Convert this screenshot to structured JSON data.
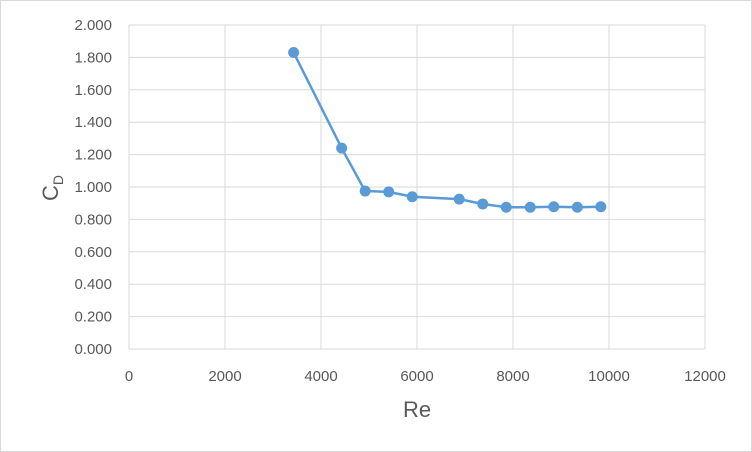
{
  "chart_data": {
    "type": "scatter",
    "title": "",
    "xlabel": "Re",
    "ylabel": {
      "main": "C",
      "subscript": "D"
    },
    "xlim": [
      0,
      12000
    ],
    "ylim": [
      0,
      2
    ],
    "x_ticks": [
      "0",
      "2000",
      "4000",
      "6000",
      "8000",
      "10000",
      "12000"
    ],
    "y_ticks": [
      "0.000",
      "0.200",
      "0.400",
      "0.600",
      "0.800",
      "1.000",
      "1.200",
      "1.400",
      "1.600",
      "1.800",
      "2.000"
    ],
    "grid": true,
    "legend": "none",
    "colors": {
      "series": "#5b9bd5",
      "grid": "#d9d9d9",
      "text": "#595959"
    },
    "series": [
      {
        "x": [
          3430,
          4430,
          4920,
          5410,
          5900,
          6880,
          7370,
          7860,
          8360,
          8850,
          9340,
          9830
        ],
        "y": [
          1.83,
          1.24,
          0.975,
          0.97,
          0.94,
          0.925,
          0.895,
          0.875,
          0.875,
          0.878,
          0.875,
          0.878
        ]
      }
    ]
  }
}
